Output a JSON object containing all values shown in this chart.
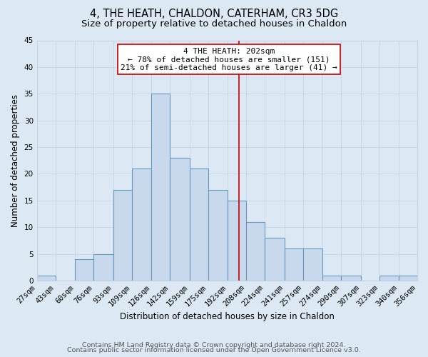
{
  "title": "4, THE HEATH, CHALDON, CATERHAM, CR3 5DG",
  "subtitle": "Size of property relative to detached houses in Chaldon",
  "xlabel": "Distribution of detached houses by size in Chaldon",
  "ylabel": "Number of detached properties",
  "bin_edges": [
    27,
    43,
    60,
    76,
    93,
    109,
    126,
    142,
    159,
    175,
    192,
    208,
    224,
    241,
    257,
    274,
    290,
    307,
    323,
    340,
    356
  ],
  "bar_heights": [
    1,
    0,
    4,
    5,
    17,
    21,
    35,
    23,
    21,
    17,
    15,
    11,
    8,
    6,
    6,
    1,
    1,
    0,
    1,
    1
  ],
  "bar_facecolor": "#c8d8ed",
  "bar_edgecolor": "#6699bb",
  "grid_color": "#c8d4e4",
  "background_color": "#dce8f4",
  "plot_bg_color": "#dce8f4",
  "vline_x": 202,
  "vline_color": "#cc0000",
  "annotation_title": "4 THE HEATH: 202sqm",
  "annotation_line1": "← 78% of detached houses are smaller (151)",
  "annotation_line2": "21% of semi-detached houses are larger (41) →",
  "annotation_box_edgecolor": "#cc0000",
  "annotation_box_facecolor": "#ffffff",
  "ylim": [
    0,
    45
  ],
  "yticks": [
    0,
    5,
    10,
    15,
    20,
    25,
    30,
    35,
    40,
    45
  ],
  "tick_labels": [
    "27sqm",
    "43sqm",
    "60sqm",
    "76sqm",
    "93sqm",
    "109sqm",
    "126sqm",
    "142sqm",
    "159sqm",
    "175sqm",
    "192sqm",
    "208sqm",
    "224sqm",
    "241sqm",
    "257sqm",
    "274sqm",
    "290sqm",
    "307sqm",
    "323sqm",
    "340sqm",
    "356sqm"
  ],
  "footer_line1": "Contains HM Land Registry data © Crown copyright and database right 2024.",
  "footer_line2": "Contains public sector information licensed under the Open Government Licence v3.0.",
  "title_fontsize": 10.5,
  "subtitle_fontsize": 9.5,
  "axis_label_fontsize": 8.5,
  "tick_fontsize": 7.5,
  "annotation_fontsize": 8,
  "footer_fontsize": 6.8
}
